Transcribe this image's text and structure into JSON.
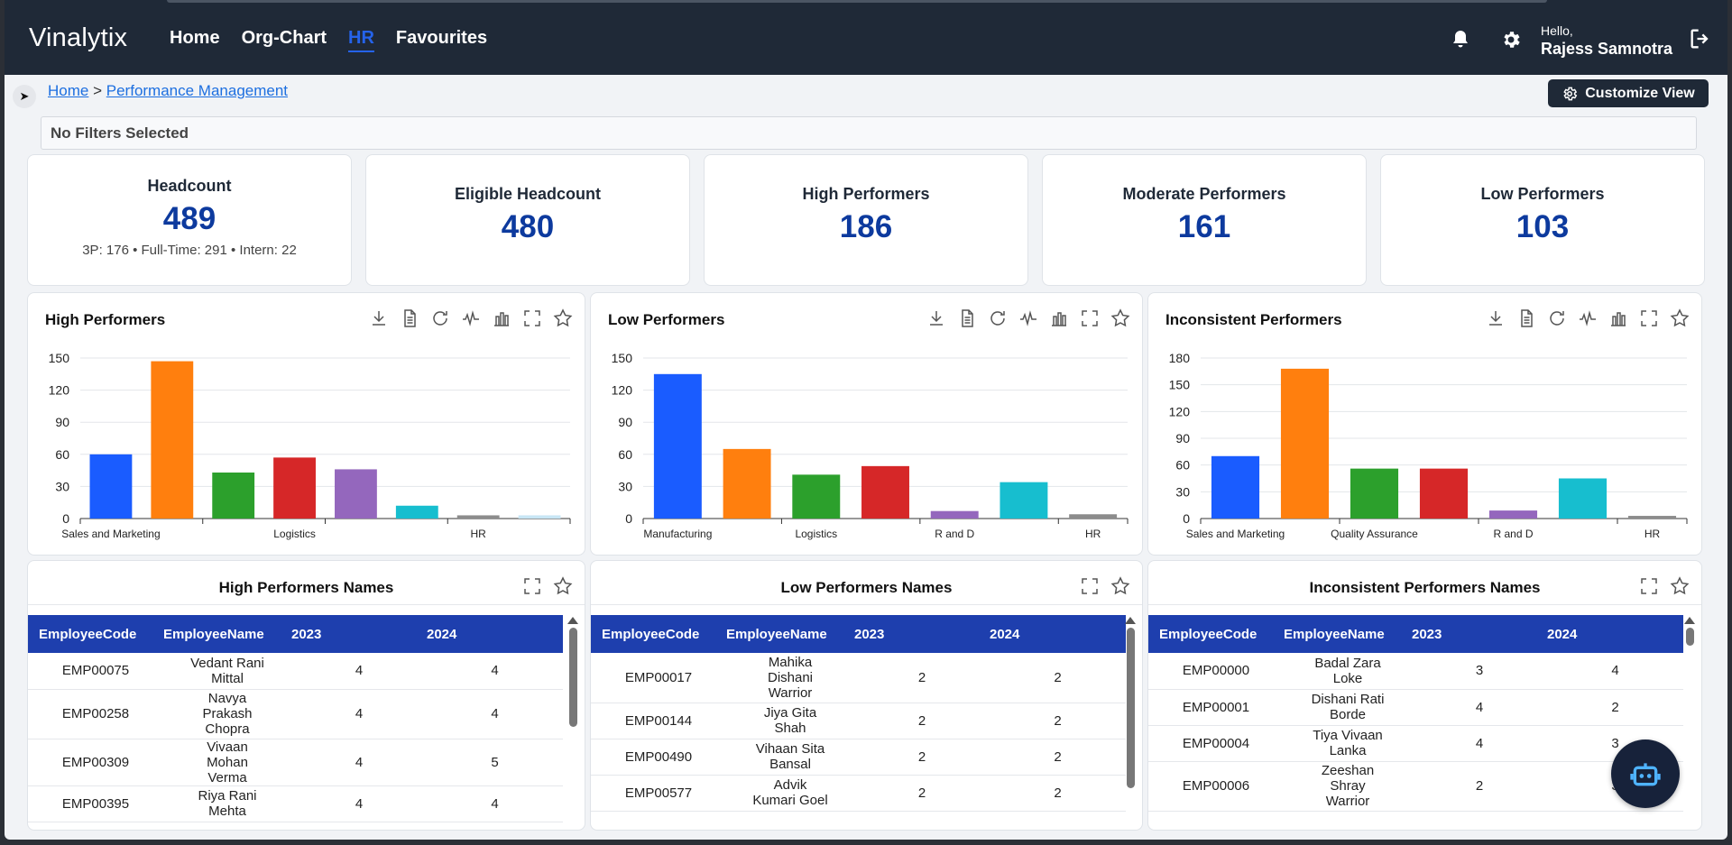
{
  "header": {
    "logo": "Vinalytix",
    "nav": [
      {
        "label": "Home",
        "active": false
      },
      {
        "label": "Org-Chart",
        "active": false
      },
      {
        "label": "HR",
        "active": true
      },
      {
        "label": "Favourites",
        "active": false
      }
    ],
    "icons": [
      "bell-icon",
      "gear-icon",
      "logout-icon"
    ],
    "greeting": "Hello,",
    "user_name": "Rajess Samnotra"
  },
  "breadcrumb": {
    "home": "Home",
    "separator": ">",
    "current": "Performance Management"
  },
  "customize_label": "Customize View",
  "filters_text": "No Filters Selected",
  "kpis": [
    {
      "label": "Headcount",
      "value": "489",
      "sub": "3P: 176 • Full-Time: 291 • Intern: 22"
    },
    {
      "label": "Eligible Headcount",
      "value": "480"
    },
    {
      "label": "High Performers",
      "value": "186"
    },
    {
      "label": "Moderate Performers",
      "value": "161"
    },
    {
      "label": "Low Performers",
      "value": "103"
    }
  ],
  "colors": {
    "accent": "#2563eb",
    "kpi_value": "#0d3a9e",
    "table_header": "#1e3fae",
    "topbar": "#1f2937"
  },
  "chart_data": [
    {
      "type": "bar",
      "title": "High Performers",
      "categories": [
        "Sales and Marketing",
        "",
        "",
        "Logistics",
        "",
        "",
        "HR",
        ""
      ],
      "values": [
        60,
        147,
        43,
        57,
        46,
        12,
        3,
        3
      ],
      "colors": [
        "#1a5cff",
        "#ff7f0e",
        "#2ca02c",
        "#d62728",
        "#9467bd",
        "#17becf",
        "#8c8c8c",
        "#c8e6f5"
      ],
      "yticks": [
        0,
        30,
        60,
        90,
        120,
        150
      ],
      "ylim": [
        0,
        150
      ],
      "grid": true
    },
    {
      "type": "bar",
      "title": "Low Performers",
      "categories": [
        "Manufacturing",
        "",
        "Logistics",
        "",
        "R and D",
        "",
        "HR"
      ],
      "values": [
        135,
        65,
        41,
        49,
        7,
        34,
        4
      ],
      "colors": [
        "#1a5cff",
        "#ff7f0e",
        "#2ca02c",
        "#d62728",
        "#9467bd",
        "#17becf",
        "#8c8c8c"
      ],
      "yticks": [
        0,
        30,
        60,
        90,
        120,
        150
      ],
      "ylim": [
        0,
        150
      ],
      "grid": true
    },
    {
      "type": "bar",
      "title": "Inconsistent Performers",
      "categories": [
        "Sales and Marketing",
        "",
        "Quality Assurance",
        "",
        "R and D",
        "",
        "HR"
      ],
      "values": [
        70,
        168,
        56,
        56,
        9,
        45,
        3
      ],
      "colors": [
        "#1a5cff",
        "#ff7f0e",
        "#2ca02c",
        "#d62728",
        "#9467bd",
        "#17becf",
        "#8c8c8c"
      ],
      "yticks": [
        0,
        30,
        60,
        90,
        120,
        150,
        180
      ],
      "ylim": [
        0,
        180
      ],
      "grid": true
    }
  ],
  "tables": [
    {
      "title": "High Performers Names",
      "columns": [
        "EmployeeCode",
        "EmployeeName",
        "2023",
        "2024"
      ],
      "rows": [
        [
          "EMP00075",
          "Vedant Rani Mittal",
          "4",
          "4"
        ],
        [
          "EMP00258",
          "Navya Prakash Chopra",
          "4",
          "4"
        ],
        [
          "EMP00309",
          "Vivaan Mohan Verma",
          "4",
          "5"
        ],
        [
          "EMP00395",
          "Riya Rani Mehta",
          "4",
          "4"
        ]
      ]
    },
    {
      "title": "Low Performers Names",
      "columns": [
        "EmployeeCode",
        "EmployeeName",
        "2023",
        "2024"
      ],
      "rows": [
        [
          "EMP00017",
          "Mahika Dishani Warrior",
          "2",
          "2"
        ],
        [
          "EMP00144",
          "Jiya Gita Shah",
          "2",
          "2"
        ],
        [
          "EMP00490",
          "Vihaan Sita Bansal",
          "2",
          "2"
        ],
        [
          "EMP00577",
          "Advik Kumari Goel",
          "2",
          "2"
        ]
      ]
    },
    {
      "title": "Inconsistent Performers Names",
      "columns": [
        "EmployeeCode",
        "EmployeeName",
        "2023",
        "2024"
      ],
      "rows": [
        [
          "EMP00000",
          "Badal Zara Loke",
          "3",
          "4"
        ],
        [
          "EMP00001",
          "Dishani Rati Borde",
          "4",
          "2"
        ],
        [
          "EMP00004",
          "Tiya Vivaan Lanka",
          "4",
          "3"
        ],
        [
          "EMP00006",
          "Zeeshan Shray Warrior",
          "2",
          "3"
        ]
      ]
    }
  ]
}
